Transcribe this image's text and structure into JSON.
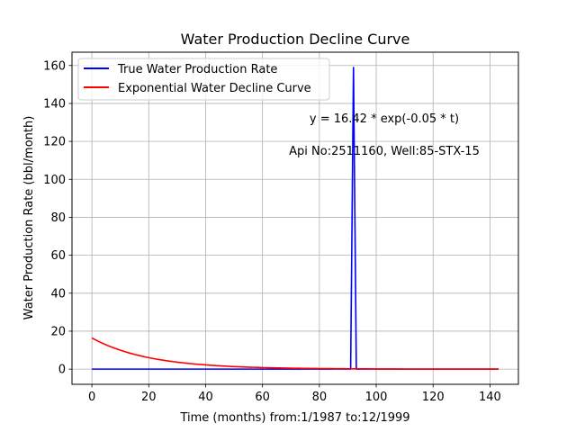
{
  "chart_data": {
    "type": "line",
    "title": "Water Production Decline Curve",
    "xlabel": "Time (months) from:1/1987 to:12/1999",
    "ylabel": "Water Production Rate (bbl/month)",
    "xlim": [
      -7,
      150
    ],
    "ylim": [
      -8,
      167
    ],
    "xticks": [
      0,
      20,
      40,
      60,
      80,
      100,
      120,
      140
    ],
    "yticks": [
      0,
      20,
      40,
      60,
      80,
      100,
      120,
      140,
      160
    ],
    "grid": true,
    "legend_position": "top-left",
    "series": [
      {
        "name": "True Water Production Rate",
        "color": "#0000ff",
        "points": [
          [
            0,
            0
          ],
          [
            91,
            0
          ],
          [
            92,
            159
          ],
          [
            93,
            0
          ],
          [
            143,
            0
          ]
        ]
      },
      {
        "name": "Exponential Water Decline Curve",
        "color": "#ff0000",
        "model": {
          "a": 16.42,
          "b": -0.05,
          "x_start": 0,
          "x_end": 143
        }
      }
    ],
    "annotations": [
      "y = 16.42 * exp(-0.05 * t)",
      "Api No:2511160, Well:85-STX-15"
    ]
  }
}
